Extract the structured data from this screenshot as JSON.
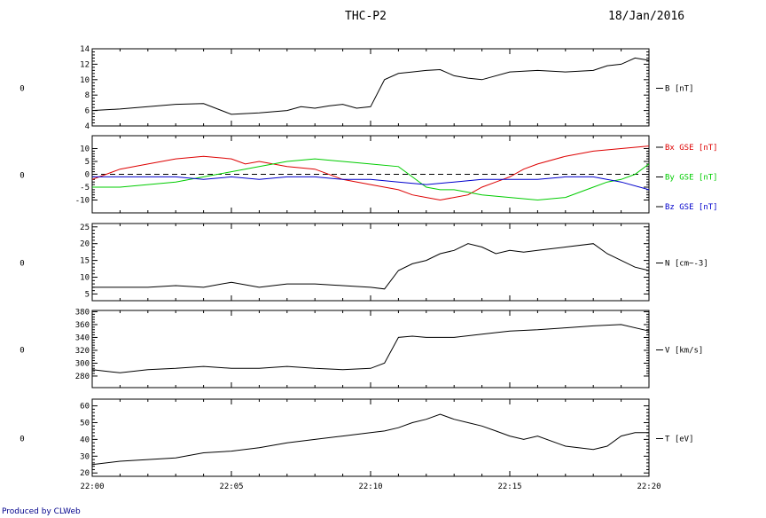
{
  "header": {
    "title": "THC-P2",
    "date": "18/Jan/2016"
  },
  "footer": {
    "credit": "Produced by CLWeb"
  },
  "chart_data": {
    "type": "line",
    "x_tick_labels": [
      "22:00",
      "22:05",
      "22:10",
      "22:15",
      "22:20"
    ],
    "x_range": [
      "22:00",
      "22:20"
    ],
    "panels": [
      {
        "left_label": "0",
        "ylim": [
          4,
          14
        ],
        "yticks": [
          4,
          6,
          8,
          10,
          12,
          14
        ],
        "series": [
          {
            "name": "B [nT]",
            "color": "#000000",
            "x": [
              0,
              1,
              2,
              3,
              4,
              5,
              6,
              7,
              7.5,
              8,
              8.5,
              9,
              9.5,
              10,
              10.5,
              11,
              11.5,
              12,
              12.5,
              13,
              13.5,
              14,
              15,
              16,
              17,
              18,
              18.5,
              19,
              19.5,
              20
            ],
            "y": [
              6.0,
              6.2,
              6.5,
              6.8,
              6.9,
              5.5,
              5.7,
              6.0,
              6.5,
              6.3,
              6.6,
              6.8,
              6.3,
              6.5,
              10.0,
              10.8,
              11.0,
              11.2,
              11.3,
              10.5,
              10.2,
              10.0,
              11.0,
              11.2,
              11.0,
              11.2,
              11.8,
              12.0,
              12.8,
              12.5
            ]
          }
        ],
        "legend_color": "#000000",
        "legend": [
          "B [nT]"
        ]
      },
      {
        "left_label": "0",
        "ylim": [
          -15,
          15
        ],
        "yticks": [
          -10,
          -5,
          0,
          5,
          10
        ],
        "reference_line": 0,
        "series": [
          {
            "name": "Bx GSE [nT]",
            "color": "#dd0000",
            "x": [
              0,
              1,
              2,
              3,
              4,
              5,
              5.5,
              6,
              7,
              8,
              9,
              10,
              11,
              11.5,
              12,
              12.5,
              13,
              13.5,
              14,
              14.5,
              15,
              15.5,
              16,
              17,
              18,
              19,
              20
            ],
            "y": [
              -2,
              2,
              4,
              6,
              7,
              6,
              4,
              5,
              3,
              2,
              -2,
              -4,
              -6,
              -8,
              -9,
              -10,
              -9,
              -8,
              -5,
              -3,
              -1,
              2,
              4,
              7,
              9,
              10,
              11
            ]
          },
          {
            "name": "By GSE [nT]",
            "color": "#00cc00",
            "x": [
              0,
              1,
              2,
              3,
              4,
              5,
              6,
              7,
              8,
              9,
              10,
              11,
              11.5,
              12,
              12.5,
              13,
              13.5,
              14,
              15,
              16,
              17,
              18,
              18.5,
              19,
              19.5,
              20
            ],
            "y": [
              -5,
              -5,
              -4,
              -3,
              -1,
              1,
              3,
              5,
              6,
              5,
              4,
              3,
              -1,
              -5,
              -6,
              -6,
              -7,
              -8,
              -9,
              -10,
              -9,
              -5,
              -3,
              -2,
              0,
              4
            ]
          },
          {
            "name": "Bz GSE [nT]",
            "color": "#0000cc",
            "x": [
              0,
              1,
              2,
              3,
              4,
              5,
              6,
              7,
              8,
              9,
              10,
              11,
              12,
              13,
              14,
              15,
              16,
              17,
              18,
              19,
              20
            ],
            "y": [
              -1,
              -1,
              -1,
              -1,
              -2,
              -1,
              -2,
              -1,
              -1,
              -2,
              -2,
              -3,
              -4,
              -3,
              -2,
              -2,
              -2,
              -1,
              -1,
              -3,
              -6
            ]
          }
        ],
        "legend": [
          "Bx GSE [nT]",
          "By GSE [nT]",
          "Bz GSE [nT]"
        ]
      },
      {
        "left_label": "0",
        "ylim": [
          3,
          26
        ],
        "yticks": [
          5,
          10,
          15,
          20,
          25
        ],
        "series": [
          {
            "name": "N [cm^-3]",
            "color": "#000000",
            "x": [
              0,
              1,
              2,
              3,
              4,
              5,
              6,
              7,
              8,
              9,
              10,
              10.5,
              11,
              11.5,
              12,
              12.5,
              13,
              13.5,
              14,
              14.5,
              15,
              15.5,
              16,
              17,
              18,
              18.5,
              19,
              19.5,
              20
            ],
            "y": [
              7,
              7,
              7,
              7.5,
              7,
              8.5,
              7,
              8,
              8,
              7.5,
              7,
              6.5,
              12,
              14,
              15,
              17,
              18,
              20,
              19,
              17,
              18,
              17.5,
              18,
              19,
              20,
              17,
              15,
              13,
              12
            ]
          }
        ],
        "legend": [
          "N [cm~-3]"
        ]
      },
      {
        "left_label": "0",
        "ylim": [
          262,
          382
        ],
        "yticks": [
          280,
          300,
          320,
          340,
          360,
          380
        ],
        "series": [
          {
            "name": "V [km/s]",
            "color": "#000000",
            "x": [
              0,
              1,
              2,
              3,
              4,
              5,
              6,
              7,
              8,
              9,
              10,
              10.5,
              11,
              11.5,
              12,
              13,
              14,
              15,
              16,
              17,
              18,
              19,
              20
            ],
            "y": [
              290,
              285,
              290,
              292,
              295,
              292,
              292,
              295,
              292,
              290,
              292,
              300,
              340,
              342,
              340,
              340,
              345,
              350,
              352,
              355,
              358,
              360,
              350
            ]
          }
        ],
        "legend": [
          "V [km/s]"
        ]
      },
      {
        "left_label": "0",
        "ylim": [
          18,
          64
        ],
        "yticks": [
          20,
          30,
          40,
          50,
          60
        ],
        "series": [
          {
            "name": "T [eV]",
            "color": "#000000",
            "x": [
              0,
              1,
              2,
              3,
              4,
              5,
              6,
              7,
              8,
              9,
              10,
              10.5,
              11,
              11.5,
              12,
              12.5,
              13,
              13.5,
              14,
              14.5,
              15,
              15.5,
              16,
              17,
              18,
              18.5,
              19,
              19.5,
              20
            ],
            "y": [
              25,
              27,
              28,
              29,
              32,
              33,
              35,
              38,
              40,
              42,
              44,
              45,
              47,
              50,
              52,
              55,
              52,
              50,
              48,
              45,
              42,
              40,
              42,
              36,
              34,
              36,
              42,
              44,
              44
            ]
          }
        ],
        "legend": [
          "T [eV]"
        ]
      }
    ]
  }
}
